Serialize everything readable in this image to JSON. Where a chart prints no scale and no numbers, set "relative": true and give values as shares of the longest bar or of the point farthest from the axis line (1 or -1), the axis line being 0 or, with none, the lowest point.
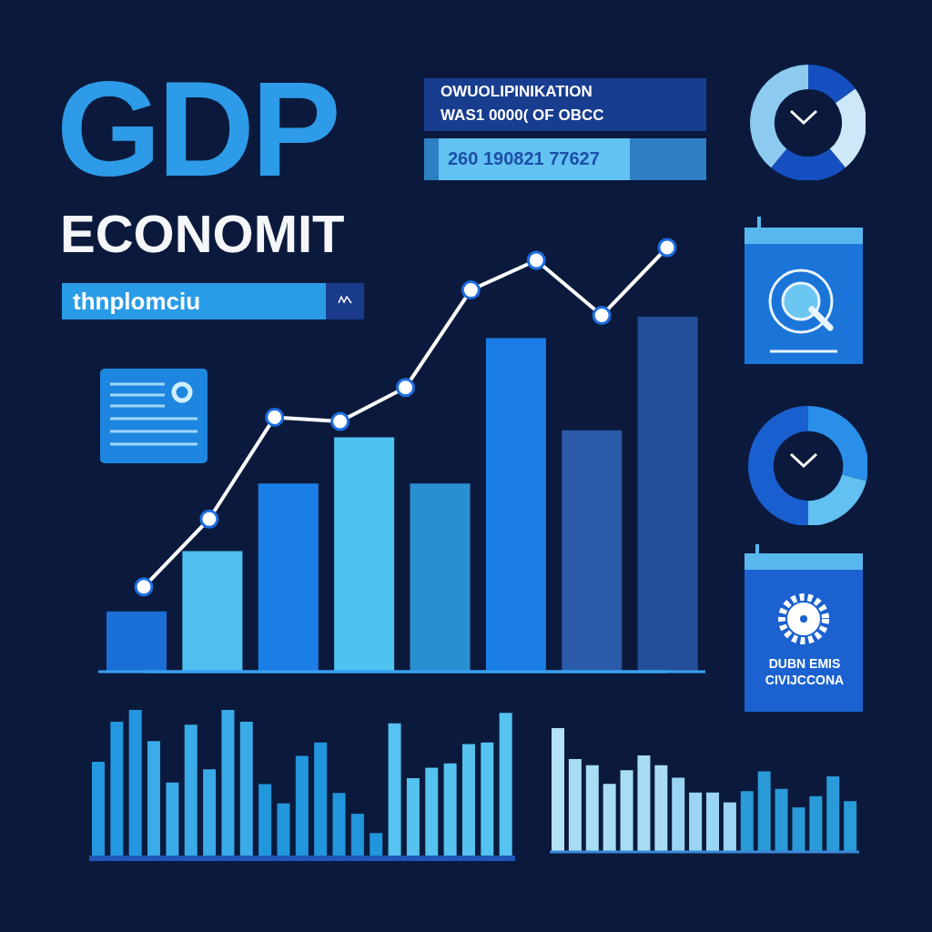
{
  "chart_data": [
    {
      "type": "bar",
      "title": "GDP",
      "subtitle": "ECONOMIT",
      "annotations": [
        "thnplomciu",
        "OWUOLIPINIKATION",
        "WAS1 0000( OF OBCC",
        "260 190821 77627",
        "DUBN EMIS",
        "CIVIJCCONA"
      ],
      "categories": [
        null,
        null,
        null,
        null,
        null,
        null,
        null,
        null
      ],
      "relative": true,
      "values": [
        0.17,
        0.34,
        0.53,
        0.66,
        0.53,
        0.94,
        0.68,
        1.0
      ],
      "colors": [
        "#1a6fd6",
        "#4fc0f0",
        "#1a7ee6",
        "#4ec3f2",
        "#2a8fd0",
        "#1a7ee6",
        "#2a5aa8",
        "#234f9a"
      ]
    },
    {
      "type": "line",
      "relative": true,
      "marker": "circle",
      "line_style": "solid",
      "categories": [
        null,
        null,
        null,
        null,
        null,
        null,
        null,
        null,
        null
      ],
      "series": [
        {
          "color": "#ffffff",
          "values": [
            0.2,
            0.36,
            0.6,
            0.59,
            0.67,
            0.9,
            0.97,
            0.84,
            1.0
          ]
        }
      ]
    },
    {
      "type": "donut",
      "categories": [
        null,
        null,
        null,
        null
      ],
      "values": [
        15,
        24,
        22,
        39
      ],
      "colors": [
        "#1650c0",
        "#cde8f8",
        "#1650c0",
        "#8ccaf0"
      ]
    },
    {
      "type": "donut",
      "categories": [
        null,
        null,
        null
      ],
      "values": [
        29,
        21,
        50
      ],
      "colors": [
        "#2a8fe8",
        "#62c0f2",
        "#1a5fcf"
      ]
    },
    {
      "type": "bar",
      "categories": [
        null,
        null,
        null,
        null,
        null,
        null,
        null,
        null,
        null,
        null,
        null,
        null,
        null,
        null,
        null,
        null,
        null,
        null,
        null,
        null,
        null,
        null,
        null
      ],
      "relative": true,
      "values": [
        0.65,
        0.92,
        1.0,
        0.79,
        0.51,
        0.9,
        0.6,
        1.0,
        0.92,
        0.5,
        0.37,
        0.69,
        0.78,
        0.44,
        0.3,
        0.17,
        0.91,
        0.54,
        0.61,
        0.64,
        0.77,
        0.78,
        0.98
      ],
      "colors": [
        "#2398e0",
        "#2398e0",
        "#2398e0",
        "#3aaae8",
        "#3aaae8",
        "#3aaae8",
        "#3aaae8",
        "#3aaae8",
        "#3aaae8",
        "#2296dc",
        "#2296dc",
        "#2296dc",
        "#2296dc",
        "#2296dc",
        "#2296dc",
        "#2296dc",
        "#55c2f0",
        "#55c2f0",
        "#55c2f0",
        "#55c2f0",
        "#55c2f0",
        "#55c2f0",
        "#55c2f0"
      ]
    },
    {
      "type": "bar",
      "categories": [
        null,
        null,
        null,
        null,
        null,
        null,
        null,
        null,
        null,
        null,
        null,
        null,
        null,
        null,
        null,
        null,
        null,
        null
      ],
      "relative": true,
      "values": [
        1.0,
        0.75,
        0.7,
        0.55,
        0.66,
        0.78,
        0.7,
        0.6,
        0.48,
        0.48,
        0.4,
        0.49,
        0.65,
        0.51,
        0.36,
        0.45,
        0.61,
        0.41
      ],
      "colors": [
        "#b4e2f8",
        "#a8dcf5",
        "#a8dcf5",
        "#a8dcf5",
        "#a8dcf5",
        "#a8dcf5",
        "#a8dcf5",
        "#9ad6f3",
        "#9ad6f3",
        "#9ad6f3",
        "#9ad6f3",
        "#2a9ad8",
        "#2a9ad8",
        "#2a9ad8",
        "#2a9ad8",
        "#2a9ad8",
        "#2a9ad8",
        "#2a9ad8"
      ]
    }
  ]
}
